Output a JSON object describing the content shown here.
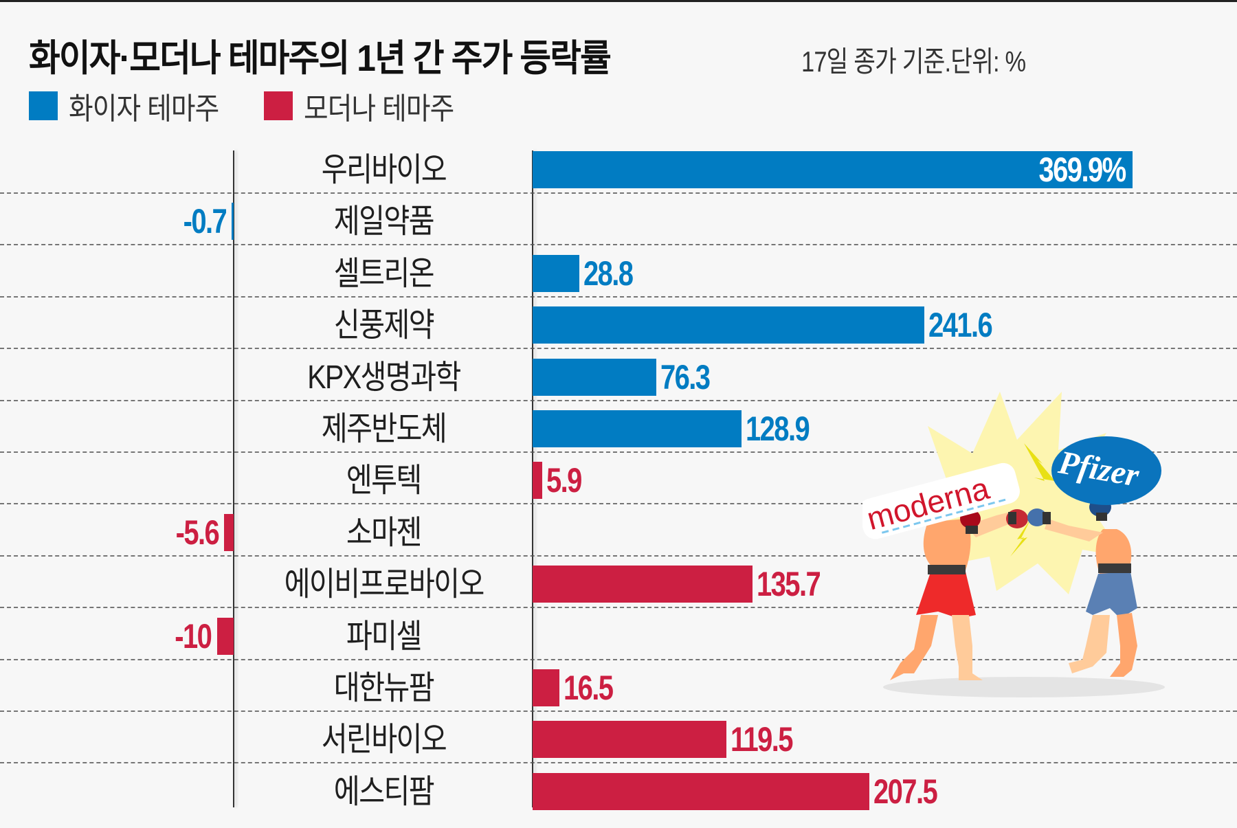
{
  "header": {
    "title": "화이자·모더나 테마주의 1년 간 주가 등락률",
    "subtitle": "17일 종가 기준.단위: %"
  },
  "legend": [
    {
      "label": "화이자 테마주",
      "color": "#017cc2"
    },
    {
      "label": "모더나 테마주",
      "color": "#cc1f42"
    }
  ],
  "colors": {
    "pfizer": "#017cc2",
    "moderna": "#cc1f42",
    "background": "#f7f7f7"
  },
  "illustration": {
    "moderna_logo": "moderna",
    "pfizer_logo": "Pfizer"
  },
  "chart_data": {
    "type": "bar",
    "orientation": "horizontal",
    "title": "화이자·모더나 테마주의 1년 간 주가 등락률",
    "subtitle": "17일 종가 기준.단위: %",
    "xlabel": "",
    "ylabel": "",
    "unit": "%",
    "grid": "dashed horizontal row separators",
    "legend_position": "top-left",
    "categories": [
      "우리바이오",
      "제일약품",
      "셀트리온",
      "신풍제약",
      "KPX생명과학",
      "제주반도체",
      "엔투텍",
      "소마젠",
      "에이비프로바이오",
      "파미셀",
      "대한뉴팜",
      "서린바이오",
      "에스티팜"
    ],
    "values": [
      369.9,
      -0.7,
      28.8,
      241.6,
      76.3,
      128.9,
      5.9,
      -5.6,
      135.7,
      -10,
      16.5,
      119.5,
      207.5
    ],
    "labels": [
      "369.9%",
      "-0.7",
      "28.8",
      "241.6",
      "76.3",
      "128.9",
      "5.9",
      "-5.6",
      "135.7",
      "-10",
      "16.5",
      "119.5",
      "207.5"
    ],
    "groups": [
      "화이자 테마주",
      "화이자 테마주",
      "화이자 테마주",
      "화이자 테마주",
      "화이자 테마주",
      "화이자 테마주",
      "모더나 테마주",
      "모더나 테마주",
      "모더나 테마주",
      "모더나 테마주",
      "모더나 테마주",
      "모더나 테마주",
      "모더나 테마주"
    ],
    "series": [
      {
        "name": "화이자 테마주",
        "categories": [
          "우리바이오",
          "제일약품",
          "셀트리온",
          "신풍제약",
          "KPX생명과학",
          "제주반도체"
        ],
        "values": [
          369.9,
          -0.7,
          28.8,
          241.6,
          76.3,
          128.9
        ],
        "color": "#017cc2"
      },
      {
        "name": "모더나 테마주",
        "categories": [
          "엔투텍",
          "소마젠",
          "에이비프로바이오",
          "파미셀",
          "대한뉴팜",
          "서린바이오",
          "에스티팜"
        ],
        "values": [
          5.9,
          -5.6,
          135.7,
          -10,
          16.5,
          119.5,
          207.5
        ],
        "color": "#cc1f42"
      }
    ],
    "xlim": [
      -10,
      369.9
    ]
  }
}
